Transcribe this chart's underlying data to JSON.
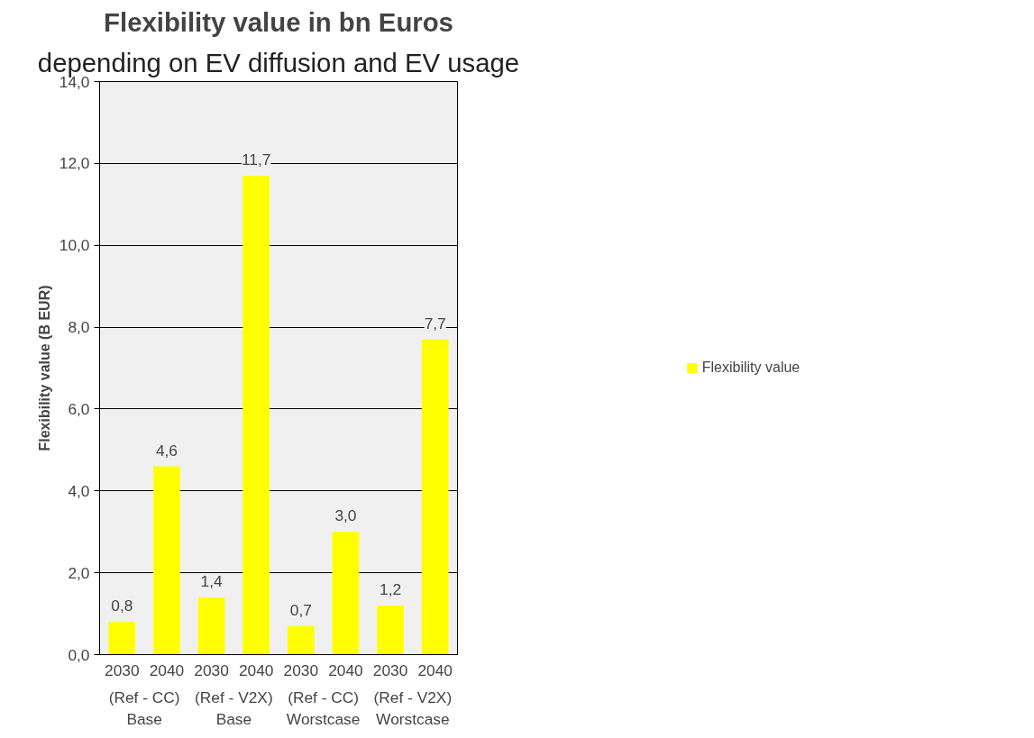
{
  "chart_data": {
    "type": "bar",
    "title": "Flexibility value in bn Euros",
    "subtitle": "depending on EV diffusion and EV usage",
    "ylabel": "Flexibility value (B EUR)",
    "categories": [
      "2030",
      "2040",
      "2030",
      "2040",
      "2030",
      "2040",
      "2030",
      "2040"
    ],
    "annotations": [
      "(Ref - CC)\nBase",
      "(Ref - V2X)\nBase",
      "(Ref - CC)\nWorstcase",
      "(Ref - V2X)\nWorstcase"
    ],
    "series": [
      {
        "name": "Flexibility value",
        "color": "#ffff00",
        "values": [
          0.8,
          4.6,
          1.4,
          11.7,
          0.7,
          3.0,
          1.2,
          7.7
        ],
        "value_labels": [
          "0,8",
          "4,6",
          "1,4",
          "11,7",
          "0,7",
          "3,0",
          "1,2",
          "7,7"
        ]
      }
    ],
    "ylim": [
      0,
      14
    ],
    "yticks": [
      {
        "value": 0,
        "label": "0,0"
      },
      {
        "value": 2,
        "label": "2,0"
      },
      {
        "value": 4,
        "label": "4,0"
      },
      {
        "value": 6,
        "label": "6,0"
      },
      {
        "value": 8,
        "label": "8,0"
      },
      {
        "value": 10,
        "label": "10,0"
      },
      {
        "value": 12,
        "label": "12,0"
      },
      {
        "value": 14,
        "label": "14,0"
      }
    ],
    "grid": "y",
    "legend": "right"
  }
}
